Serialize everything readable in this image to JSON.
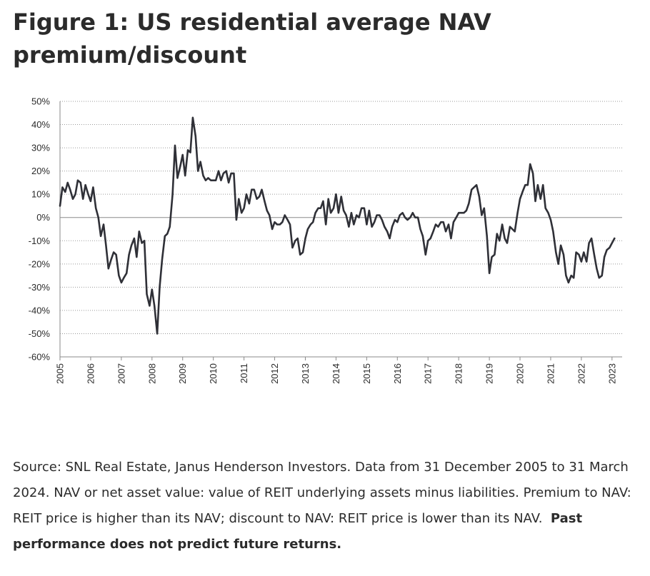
{
  "title_line1": "Figure 1: US residential average NAV",
  "title_line2": "premium/discount",
  "source_text": "Source: SNL Real Estate, Janus Henderson Investors. Data from 31 December 2005 to 31 March 2024. NAV or net asset value: value of REIT underlying assets minus liabilities. Premium to NAV: REIT price is higher than its NAV; discount to NAV: REIT price is lower than its NAV.",
  "source_emphasis": "Past performance does not predict future returns.",
  "chart_data": {
    "type": "line",
    "title": "Figure 1: US residential average NAV premium/discount",
    "xlabel": "",
    "ylabel": "",
    "ylim": [
      -60,
      50
    ],
    "yticks": [
      50,
      40,
      30,
      20,
      10,
      0,
      -10,
      -20,
      -30,
      -40,
      -50,
      -60
    ],
    "ytick_labels": [
      "50%",
      "40%",
      "30%",
      "20%",
      "10%",
      "0%",
      "-10%",
      "-20%",
      "-30%",
      "-40%",
      "-50%",
      "-60%"
    ],
    "xlim": [
      2005.0,
      2023.33
    ],
    "xticks": [
      2005,
      2006,
      2007,
      2008,
      2009,
      2010,
      2011,
      2012,
      2013,
      2014,
      2015,
      2016,
      2017,
      2018,
      2019,
      2020,
      2021,
      2022,
      2023
    ],
    "xtick_labels": [
      "2005",
      "2006",
      "2007",
      "2008",
      "2009",
      "2010",
      "2011",
      "2012",
      "2013",
      "2014",
      "2015",
      "2016",
      "2017",
      "2018",
      "2019",
      "2020",
      "2021",
      "2022",
      "2023"
    ],
    "grid": "horizontal-dotted",
    "line_color": "#2f3037",
    "series": [
      {
        "values": [
          [
            2005.0,
            5
          ],
          [
            2005.08,
            13
          ],
          [
            2005.17,
            11
          ],
          [
            2005.25,
            15
          ],
          [
            2005.33,
            12
          ],
          [
            2005.42,
            8
          ],
          [
            2005.5,
            10
          ],
          [
            2005.58,
            16
          ],
          [
            2005.67,
            15
          ],
          [
            2005.75,
            8
          ],
          [
            2005.83,
            14
          ],
          [
            2005.92,
            10
          ],
          [
            2006.0,
            7
          ],
          [
            2006.08,
            13
          ],
          [
            2006.17,
            4
          ],
          [
            2006.25,
            0
          ],
          [
            2006.33,
            -8
          ],
          [
            2006.42,
            -3
          ],
          [
            2006.5,
            -12
          ],
          [
            2006.58,
            -22
          ],
          [
            2006.67,
            -18
          ],
          [
            2006.75,
            -15
          ],
          [
            2006.83,
            -16
          ],
          [
            2006.92,
            -25
          ],
          [
            2007.0,
            -28
          ],
          [
            2007.08,
            -26
          ],
          [
            2007.17,
            -24
          ],
          [
            2007.25,
            -16
          ],
          [
            2007.33,
            -12
          ],
          [
            2007.42,
            -9
          ],
          [
            2007.5,
            -17
          ],
          [
            2007.58,
            -6
          ],
          [
            2007.67,
            -11
          ],
          [
            2007.75,
            -10
          ],
          [
            2007.83,
            -33
          ],
          [
            2007.92,
            -38
          ],
          [
            2008.0,
            -31
          ],
          [
            2008.08,
            -38
          ],
          [
            2008.17,
            -50
          ],
          [
            2008.25,
            -30
          ],
          [
            2008.33,
            -18
          ],
          [
            2008.42,
            -8
          ],
          [
            2008.5,
            -7
          ],
          [
            2008.58,
            -4
          ],
          [
            2008.67,
            10
          ],
          [
            2008.75,
            31
          ],
          [
            2008.83,
            17
          ],
          [
            2008.92,
            22
          ],
          [
            2009.0,
            27
          ],
          [
            2009.08,
            18
          ],
          [
            2009.17,
            29
          ],
          [
            2009.25,
            28
          ],
          [
            2009.33,
            43
          ],
          [
            2009.42,
            35
          ],
          [
            2009.5,
            20
          ],
          [
            2009.58,
            24
          ],
          [
            2009.67,
            18
          ],
          [
            2009.75,
            16
          ],
          [
            2009.83,
            17
          ],
          [
            2009.92,
            16
          ],
          [
            2010.0,
            16
          ],
          [
            2010.08,
            16
          ],
          [
            2010.17,
            20
          ],
          [
            2010.25,
            16
          ],
          [
            2010.33,
            19
          ],
          [
            2010.42,
            20
          ],
          [
            2010.5,
            15
          ],
          [
            2010.58,
            19
          ],
          [
            2010.67,
            19
          ],
          [
            2010.75,
            -1
          ],
          [
            2010.83,
            8
          ],
          [
            2010.92,
            2
          ],
          [
            2011.0,
            4
          ],
          [
            2011.08,
            10
          ],
          [
            2011.17,
            6
          ],
          [
            2011.25,
            12
          ],
          [
            2011.33,
            12
          ],
          [
            2011.42,
            8
          ],
          [
            2011.5,
            9
          ],
          [
            2011.58,
            12
          ],
          [
            2011.67,
            7
          ],
          [
            2011.75,
            3
          ],
          [
            2011.83,
            1
          ],
          [
            2011.92,
            -5
          ],
          [
            2012.0,
            -2
          ],
          [
            2012.08,
            -3
          ],
          [
            2012.17,
            -3
          ],
          [
            2012.25,
            -2
          ],
          [
            2012.33,
            1
          ],
          [
            2012.42,
            -1
          ],
          [
            2012.5,
            -3
          ],
          [
            2012.58,
            -13
          ],
          [
            2012.67,
            -10
          ],
          [
            2012.75,
            -9
          ],
          [
            2012.83,
            -16
          ],
          [
            2012.92,
            -15
          ],
          [
            2013.0,
            -9
          ],
          [
            2013.08,
            -5
          ],
          [
            2013.17,
            -3
          ],
          [
            2013.25,
            -2
          ],
          [
            2013.33,
            2
          ],
          [
            2013.42,
            4
          ],
          [
            2013.5,
            4
          ],
          [
            2013.58,
            7
          ],
          [
            2013.67,
            -3
          ],
          [
            2013.75,
            8
          ],
          [
            2013.83,
            2
          ],
          [
            2013.92,
            4
          ],
          [
            2014.0,
            10
          ],
          [
            2014.08,
            2
          ],
          [
            2014.17,
            9
          ],
          [
            2014.25,
            3
          ],
          [
            2014.33,
            1
          ],
          [
            2014.42,
            -4
          ],
          [
            2014.5,
            2
          ],
          [
            2014.58,
            -3
          ],
          [
            2014.67,
            1
          ],
          [
            2014.75,
            0
          ],
          [
            2014.83,
            4
          ],
          [
            2014.92,
            4
          ],
          [
            2015.0,
            -3
          ],
          [
            2015.08,
            3
          ],
          [
            2015.17,
            -4
          ],
          [
            2015.25,
            -2
          ],
          [
            2015.33,
            1
          ],
          [
            2015.42,
            1
          ],
          [
            2015.5,
            -1
          ],
          [
            2015.58,
            -4
          ],
          [
            2015.67,
            -6
          ],
          [
            2015.75,
            -9
          ],
          [
            2015.83,
            -4
          ],
          [
            2015.92,
            -1
          ],
          [
            2016.0,
            -2
          ],
          [
            2016.08,
            1
          ],
          [
            2016.17,
            2
          ],
          [
            2016.25,
            0
          ],
          [
            2016.33,
            -1
          ],
          [
            2016.42,
            0
          ],
          [
            2016.5,
            2
          ],
          [
            2016.58,
            0
          ],
          [
            2016.67,
            0
          ],
          [
            2016.75,
            -5
          ],
          [
            2016.83,
            -8
          ],
          [
            2016.92,
            -16
          ],
          [
            2017.0,
            -10
          ],
          [
            2017.08,
            -9
          ],
          [
            2017.17,
            -6
          ],
          [
            2017.25,
            -3
          ],
          [
            2017.33,
            -4
          ],
          [
            2017.42,
            -2
          ],
          [
            2017.5,
            -2
          ],
          [
            2017.58,
            -6
          ],
          [
            2017.67,
            -3
          ],
          [
            2017.75,
            -9
          ],
          [
            2017.83,
            -2
          ],
          [
            2017.92,
            0
          ],
          [
            2018.0,
            2
          ],
          [
            2018.08,
            2
          ],
          [
            2018.17,
            2
          ],
          [
            2018.25,
            3
          ],
          [
            2018.33,
            6
          ],
          [
            2018.42,
            12
          ],
          [
            2018.5,
            13
          ],
          [
            2018.58,
            14
          ],
          [
            2018.67,
            9
          ],
          [
            2018.75,
            1
          ],
          [
            2018.83,
            4
          ],
          [
            2018.92,
            -8
          ],
          [
            2019.0,
            -24
          ],
          [
            2019.08,
            -17
          ],
          [
            2019.17,
            -16
          ],
          [
            2019.25,
            -7
          ],
          [
            2019.33,
            -10
          ],
          [
            2019.42,
            -3
          ],
          [
            2019.5,
            -9
          ],
          [
            2019.58,
            -11
          ],
          [
            2019.67,
            -4
          ],
          [
            2019.75,
            -5
          ],
          [
            2019.83,
            -6
          ],
          [
            2019.92,
            2
          ],
          [
            2020.0,
            8
          ],
          [
            2020.08,
            11
          ],
          [
            2020.17,
            14
          ],
          [
            2020.25,
            14
          ],
          [
            2020.33,
            23
          ],
          [
            2020.42,
            19
          ],
          [
            2020.5,
            7
          ],
          [
            2020.58,
            14
          ],
          [
            2020.67,
            8
          ],
          [
            2020.75,
            14
          ],
          [
            2020.83,
            4
          ],
          [
            2020.92,
            2
          ],
          [
            2021.0,
            -1
          ],
          [
            2021.08,
            -6
          ],
          [
            2021.17,
            -15
          ],
          [
            2021.25,
            -20
          ],
          [
            2021.33,
            -12
          ],
          [
            2021.42,
            -16
          ],
          [
            2021.5,
            -25
          ],
          [
            2021.58,
            -28
          ],
          [
            2021.67,
            -25
          ],
          [
            2021.75,
            -26
          ],
          [
            2021.83,
            -15
          ],
          [
            2021.92,
            -16
          ],
          [
            2022.0,
            -19
          ],
          [
            2022.08,
            -15
          ],
          [
            2022.17,
            -19
          ],
          [
            2022.25,
            -11
          ],
          [
            2022.33,
            -9
          ],
          [
            2022.42,
            -16
          ],
          [
            2022.5,
            -22
          ],
          [
            2022.58,
            -26
          ],
          [
            2022.67,
            -25
          ],
          [
            2022.75,
            -17
          ],
          [
            2022.83,
            -14
          ],
          [
            2022.92,
            -13
          ],
          [
            2023.0,
            -11
          ],
          [
            2023.08,
            -9
          ]
        ]
      }
    ]
  }
}
